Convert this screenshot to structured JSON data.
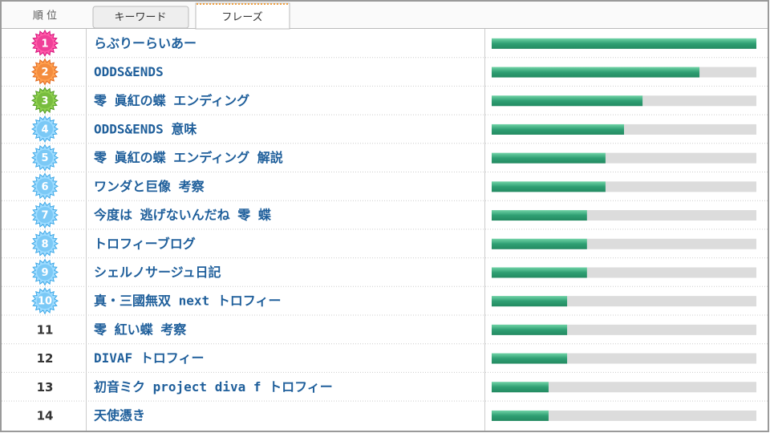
{
  "header": {
    "rank_label": "順 位",
    "tabs": [
      "キーワード",
      "フレーズ"
    ]
  },
  "table": {
    "xlim": [
      0,
      100
    ],
    "rows": [
      {
        "rank": 1,
        "phrase": "らぶりーらいあー",
        "value": 100
      },
      {
        "rank": 2,
        "phrase": "ODDS&ENDS",
        "value": 78.5
      },
      {
        "rank": 3,
        "phrase": "零 眞紅の蝶 エンディング",
        "value": 57
      },
      {
        "rank": 4,
        "phrase": "ODDS&ENDS 意味",
        "value": 50
      },
      {
        "rank": 5,
        "phrase": "零 眞紅の蝶 エンディング 解説",
        "value": 43
      },
      {
        "rank": 6,
        "phrase": "ワンダと巨像 考察",
        "value": 43
      },
      {
        "rank": 7,
        "phrase": "今度は 逃げないんだね 零 蝶",
        "value": 36
      },
      {
        "rank": 8,
        "phrase": "トロフィーブログ",
        "value": 36
      },
      {
        "rank": 9,
        "phrase": "シェルノサージュ日記",
        "value": 36
      },
      {
        "rank": 10,
        "phrase": "真・三國無双 next トロフィー",
        "value": 28.5
      },
      {
        "rank": 11,
        "phrase": "零 紅い蝶 考察",
        "value": 28.5
      },
      {
        "rank": 12,
        "phrase": "DIVAF トロフィー",
        "value": 28.5
      },
      {
        "rank": 13,
        "phrase": "初音ミク project diva f トロフィー",
        "value": 21.5
      },
      {
        "rank": 14,
        "phrase": "天使憑き",
        "value": 21.5
      }
    ]
  }
}
